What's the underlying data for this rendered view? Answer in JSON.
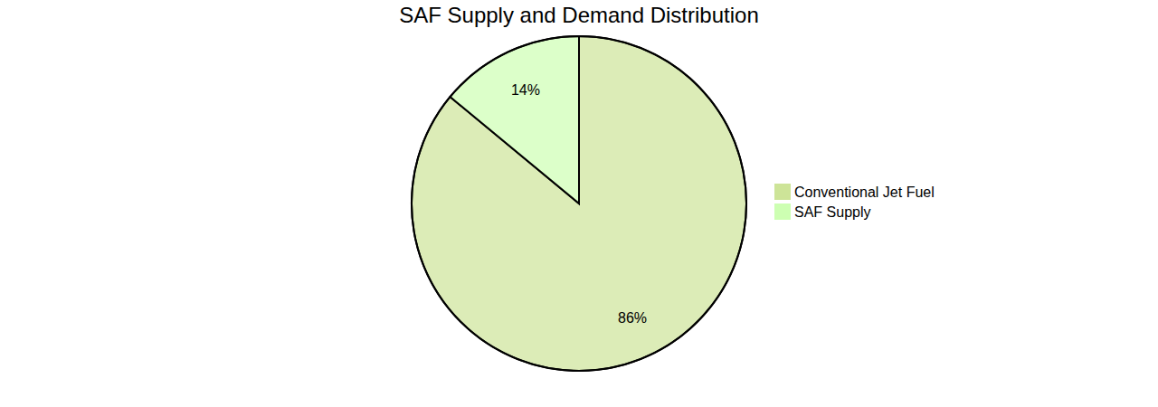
{
  "chart_data": {
    "type": "pie",
    "title": "SAF Supply and Demand Distribution",
    "categories": [
      "Conventional Jet Fuel",
      "SAF Supply"
    ],
    "values": [
      86,
      14
    ],
    "value_labels": [
      "86%",
      "14%"
    ],
    "colors": [
      "#cde498",
      "#cdffb2"
    ],
    "data_labels": true,
    "legend": "right"
  }
}
